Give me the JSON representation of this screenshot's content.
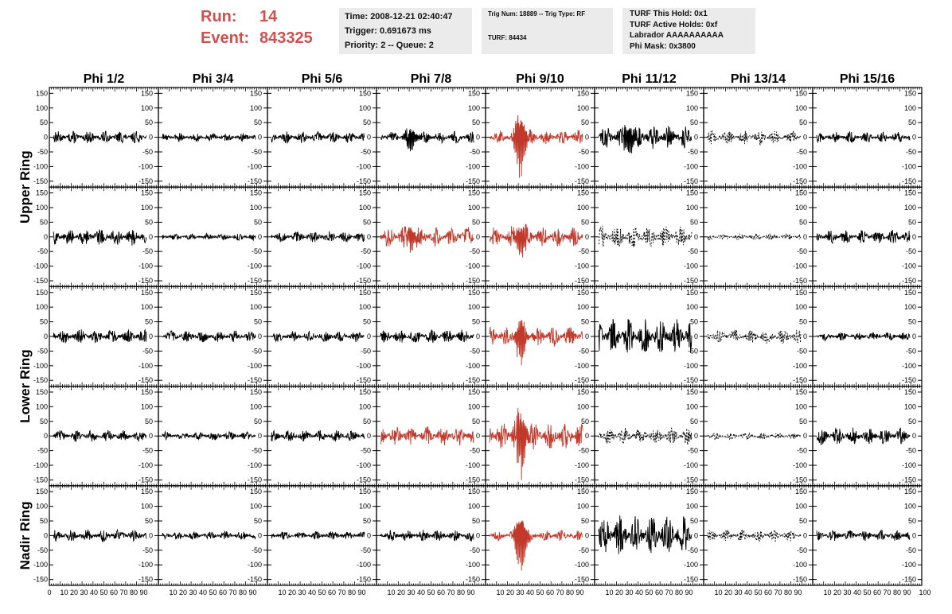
{
  "header": {
    "run_label": "Run:",
    "run_value": "14",
    "event_label": "Event:",
    "event_value": "843325",
    "time": "Time: 2008-12-21 02:40:47",
    "trigger": "Trigger: 0.691673 ms",
    "priority": "Priority: 2 -- Queue: 2",
    "trig_num": "Trig Num: 18889 -- Trig Type: RF",
    "turf": "TURF: 84434",
    "turf_this_hold": "TURF This Hold: 0x1",
    "turf_active_holds": "TURF Active Holds: 0xf",
    "labrador": "Labrador AAAAAAAAAA",
    "phi_mask": "Phi Mask: 0x3800"
  },
  "columns": [
    "Phi 1/2",
    "Phi 3/4",
    "Phi 5/6",
    "Phi 7/8",
    "Phi 9/10",
    "Phi 11/12",
    "Phi 13/14",
    "Phi 15/16"
  ],
  "rows": [
    "Upper Ring",
    "Lower Ring",
    "Nadir Ring"
  ],
  "colors": {
    "normal": "#000000",
    "triggered": "#c0392b",
    "info_bg": "#ebebeb",
    "run_text": "#d05050"
  },
  "chart_data": {
    "type": "line",
    "description_note": "",
    "ylim": [
      -170,
      170
    ],
    "xlim": [
      0,
      100
    ],
    "y_ticks": [
      "150",
      "100",
      "50",
      "0",
      "-50",
      "-100",
      "-150"
    ],
    "x_ticks_label": "10 20 30 40 50 60 70 80 90",
    "x_axis_start": "0",
    "x_axis_end": "100",
    "panels": [
      {
        "row": 0,
        "col": 0,
        "style": "solid",
        "color": "normal",
        "amp": 22
      },
      {
        "row": 0,
        "col": 1,
        "style": "solid",
        "color": "normal",
        "amp": 15
      },
      {
        "row": 0,
        "col": 2,
        "style": "solid",
        "color": "normal",
        "amp": 20
      },
      {
        "row": 0,
        "col": 3,
        "style": "solid",
        "color": "normal",
        "amp": 22,
        "burst": 45
      },
      {
        "row": 0,
        "col": 4,
        "style": "solid",
        "color": "triggered",
        "amp": 25,
        "burst": 140
      },
      {
        "row": 0,
        "col": 5,
        "style": "solid",
        "color": "normal",
        "amp": 40,
        "burst": 60
      },
      {
        "row": 0,
        "col": 6,
        "style": "dashed",
        "color": "normal",
        "amp": 25
      },
      {
        "row": 0,
        "col": 7,
        "style": "solid",
        "color": "normal",
        "amp": 20
      },
      {
        "row": 1,
        "col": 0,
        "style": "solid",
        "color": "normal",
        "amp": 30
      },
      {
        "row": 1,
        "col": 1,
        "style": "solid",
        "color": "normal",
        "amp": 12
      },
      {
        "row": 1,
        "col": 2,
        "style": "solid",
        "color": "normal",
        "amp": 20
      },
      {
        "row": 1,
        "col": 3,
        "style": "solid",
        "color": "triggered",
        "amp": 35,
        "burst": 50
      },
      {
        "row": 1,
        "col": 4,
        "style": "solid",
        "color": "triggered",
        "amp": 35,
        "burst": 70
      },
      {
        "row": 1,
        "col": 5,
        "style": "dashed",
        "color": "normal",
        "amp": 40
      },
      {
        "row": 1,
        "col": 6,
        "style": "dashed",
        "color": "normal",
        "amp": 12
      },
      {
        "row": 1,
        "col": 7,
        "style": "solid",
        "color": "normal",
        "amp": 25
      },
      {
        "row": 2,
        "col": 0,
        "style": "solid",
        "color": "normal",
        "amp": 25
      },
      {
        "row": 2,
        "col": 1,
        "style": "solid",
        "color": "normal",
        "amp": 20
      },
      {
        "row": 2,
        "col": 2,
        "style": "solid",
        "color": "normal",
        "amp": 20
      },
      {
        "row": 2,
        "col": 3,
        "style": "solid",
        "color": "normal",
        "amp": 25
      },
      {
        "row": 2,
        "col": 4,
        "style": "solid",
        "color": "triggered",
        "amp": 35,
        "burst": 90
      },
      {
        "row": 2,
        "col": 5,
        "style": "solid",
        "color": "normal",
        "amp": 60
      },
      {
        "row": 2,
        "col": 6,
        "style": "dashed",
        "color": "normal",
        "amp": 25
      },
      {
        "row": 2,
        "col": 7,
        "style": "solid",
        "color": "normal",
        "amp": 15
      },
      {
        "row": 3,
        "col": 0,
        "style": "solid",
        "color": "normal",
        "amp": 20
      },
      {
        "row": 3,
        "col": 1,
        "style": "solid",
        "color": "normal",
        "amp": 15
      },
      {
        "row": 3,
        "col": 2,
        "style": "solid",
        "color": "normal",
        "amp": 20
      },
      {
        "row": 3,
        "col": 3,
        "style": "solid",
        "color": "triggered",
        "amp": 35
      },
      {
        "row": 3,
        "col": 4,
        "style": "solid",
        "color": "triggered",
        "amp": 50,
        "burst": 140
      },
      {
        "row": 3,
        "col": 5,
        "style": "dashed",
        "color": "normal",
        "amp": 30
      },
      {
        "row": 3,
        "col": 6,
        "style": "dashed",
        "color": "normal",
        "amp": 12
      },
      {
        "row": 3,
        "col": 7,
        "style": "solid",
        "color": "normal",
        "amp": 30
      },
      {
        "row": 4,
        "col": 0,
        "style": "solid",
        "color": "normal",
        "amp": 22
      },
      {
        "row": 4,
        "col": 1,
        "style": "solid",
        "color": "normal",
        "amp": 15
      },
      {
        "row": 4,
        "col": 2,
        "style": "solid",
        "color": "normal",
        "amp": 15
      },
      {
        "row": 4,
        "col": 3,
        "style": "solid",
        "color": "normal",
        "amp": 20
      },
      {
        "row": 4,
        "col": 4,
        "style": "solid",
        "color": "triggered",
        "amp": 20,
        "burst": 130
      },
      {
        "row": 4,
        "col": 5,
        "style": "solid",
        "color": "normal",
        "amp": 70
      },
      {
        "row": 4,
        "col": 6,
        "style": "dashed",
        "color": "normal",
        "amp": 20
      },
      {
        "row": 4,
        "col": 7,
        "style": "solid",
        "color": "normal",
        "amp": 20
      }
    ]
  }
}
